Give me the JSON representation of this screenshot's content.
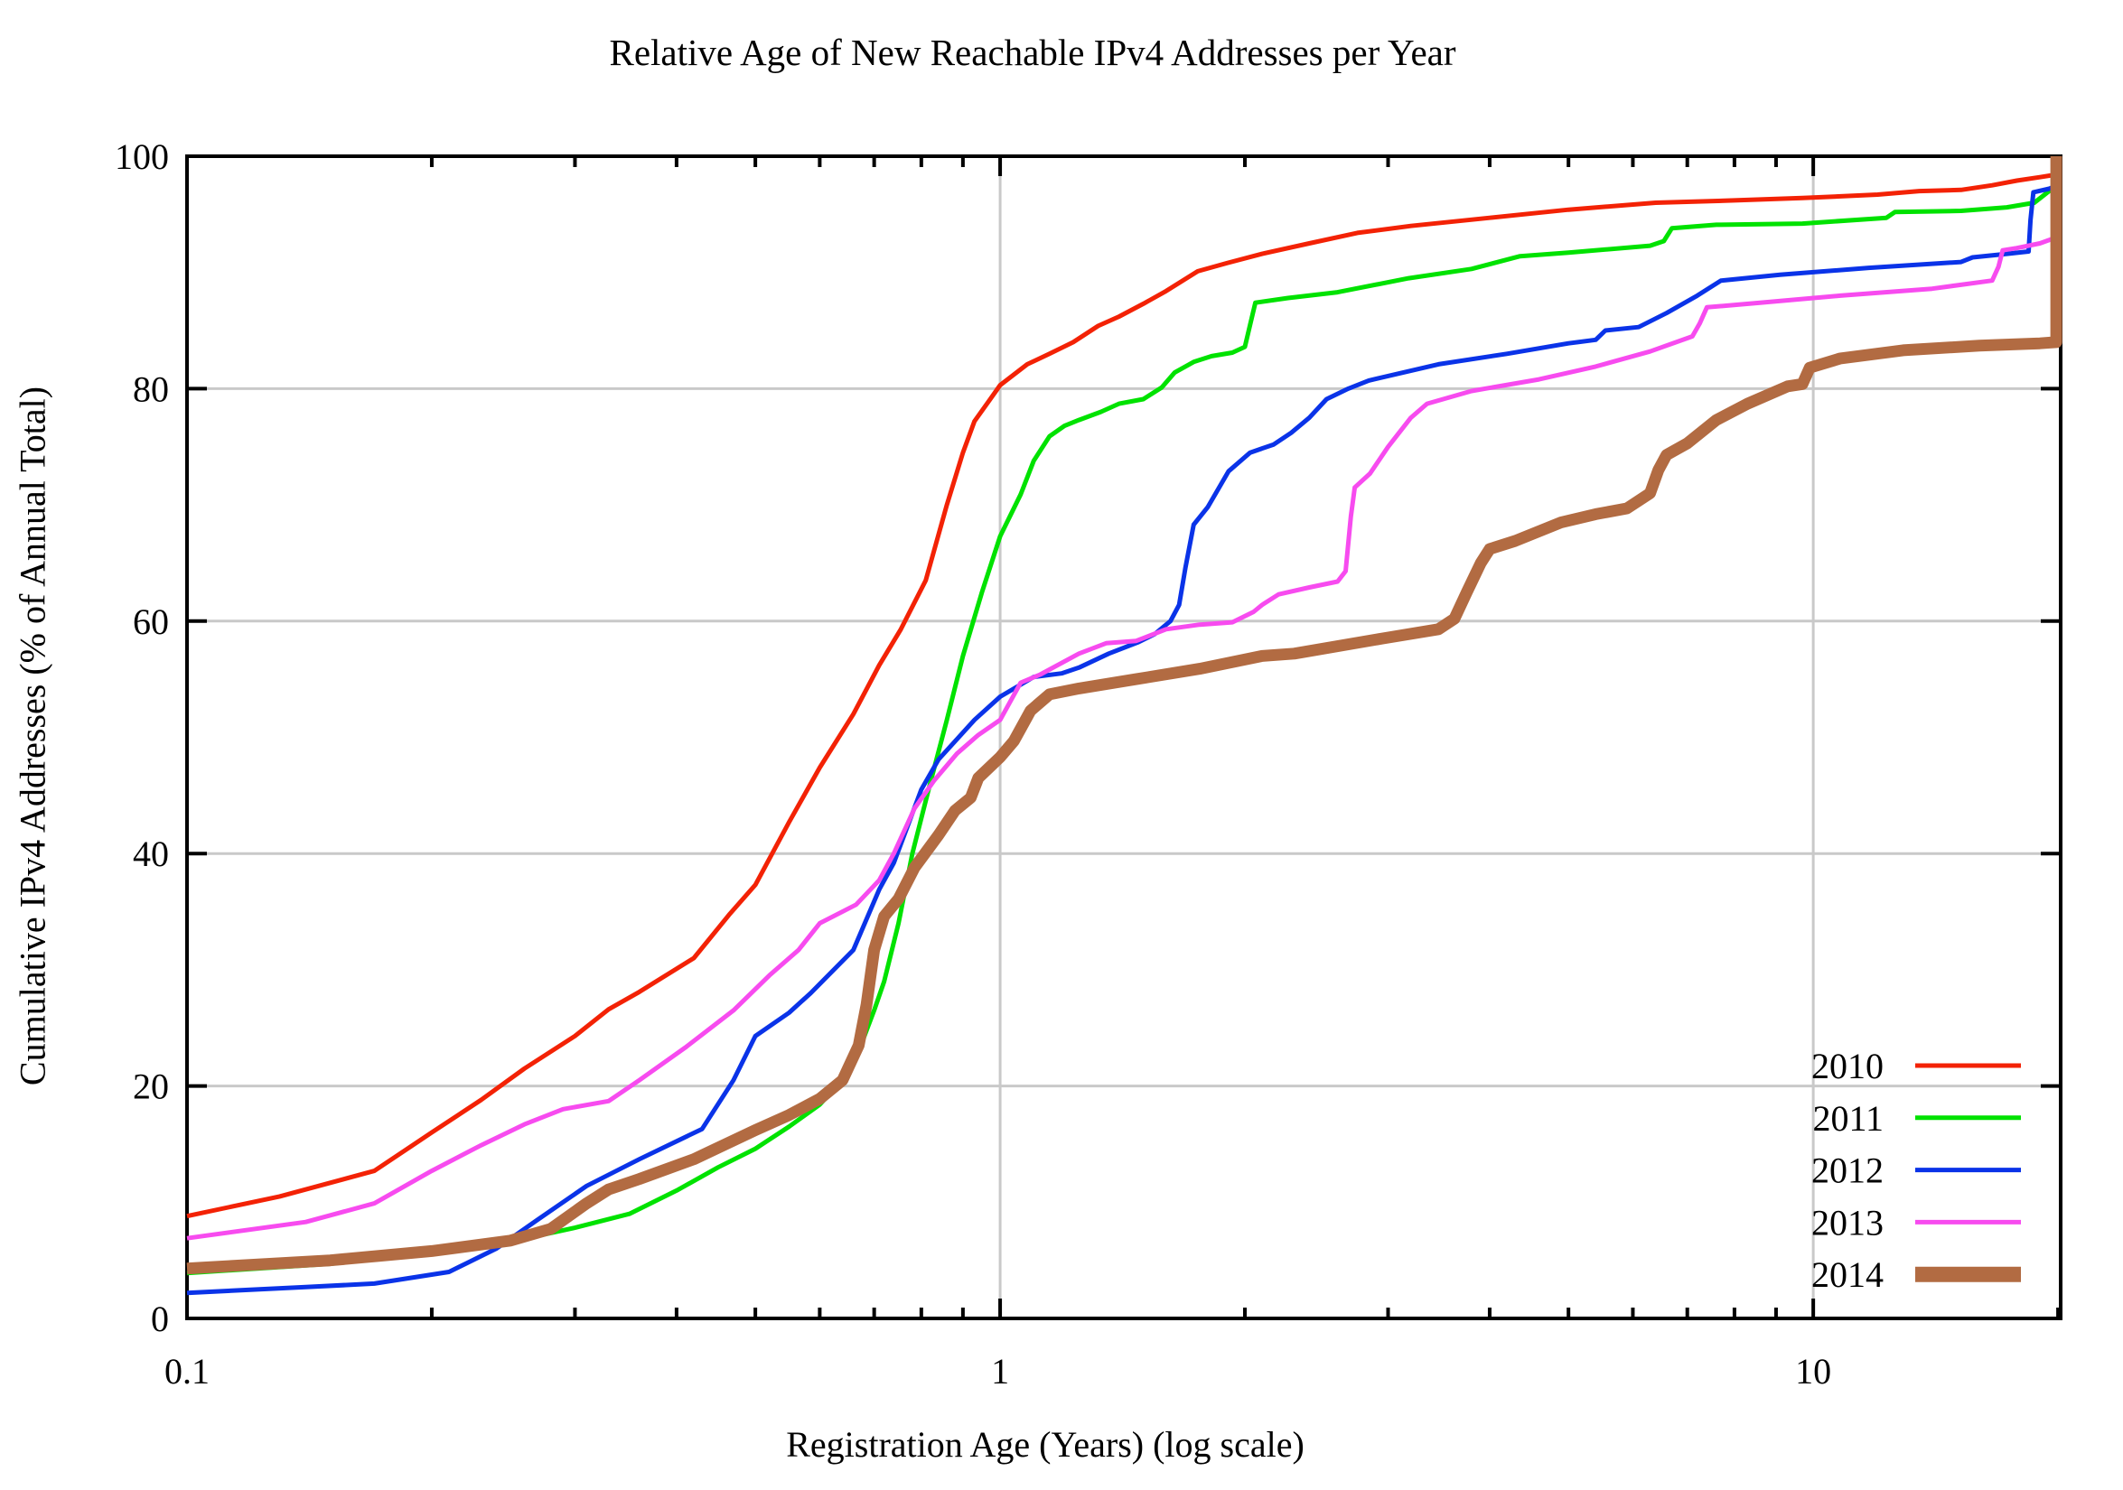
{
  "chart_data": {
    "type": "line",
    "title": "Relative Age of New Reachable IPv4 Addresses per Year",
    "xlabel": "Registration Age (Years) (log scale)",
    "ylabel": "Cumulative IPv4 Addresses (% of Annual Total)",
    "x_scale": "log",
    "x_range": [
      0.1,
      20.15
    ],
    "y_range": [
      0,
      100
    ],
    "x_major_ticks": [
      0.1,
      1,
      10
    ],
    "x_major_tick_labels": [
      "0.1",
      "1",
      "10"
    ],
    "x_minor_ticks": [
      0.2,
      0.3,
      0.4,
      0.5,
      0.6,
      0.7,
      0.8,
      0.9,
      2,
      3,
      4,
      5,
      6,
      7,
      8,
      9,
      20
    ],
    "y_ticks": [
      0,
      20,
      40,
      60,
      80,
      100
    ],
    "y_tick_labels": [
      "0",
      "20",
      "40",
      "60",
      "80",
      "100"
    ],
    "grid": {
      "x_values": [
        1,
        10
      ],
      "y_values": [
        20,
        40,
        60,
        80
      ],
      "color": "#c9c9c9"
    },
    "axis_color": "#000000",
    "background": "#ffffff",
    "legend_position": "bottom-right",
    "series": [
      {
        "name": "2010",
        "color": "#f32205",
        "stroke_width": 5,
        "legend_stroke": 5,
        "points": [
          [
            0.1,
            8.8
          ],
          [
            0.13,
            10.5
          ],
          [
            0.17,
            12.7
          ],
          [
            0.2,
            16
          ],
          [
            0.23,
            18.8
          ],
          [
            0.26,
            21.5
          ],
          [
            0.3,
            24.3
          ],
          [
            0.33,
            26.6
          ],
          [
            0.36,
            28.1
          ],
          [
            0.42,
            31
          ],
          [
            0.465,
            34.8
          ],
          [
            0.5,
            37.3
          ],
          [
            0.55,
            42.7
          ],
          [
            0.6,
            47.4
          ],
          [
            0.66,
            52
          ],
          [
            0.71,
            56.2
          ],
          [
            0.755,
            59.3
          ],
          [
            0.81,
            63.5
          ],
          [
            0.86,
            70
          ],
          [
            0.9,
            74.5
          ],
          [
            0.93,
            77.2
          ],
          [
            0.97,
            79
          ],
          [
            1,
            80.3
          ],
          [
            1.08,
            82.1
          ],
          [
            1.15,
            83
          ],
          [
            1.23,
            84
          ],
          [
            1.32,
            85.4
          ],
          [
            1.4,
            86.2
          ],
          [
            1.5,
            87.3
          ],
          [
            1.6,
            88.4
          ],
          [
            1.75,
            90.1
          ],
          [
            1.9,
            90.8
          ],
          [
            2.1,
            91.6
          ],
          [
            2.4,
            92.5
          ],
          [
            2.75,
            93.4
          ],
          [
            3.2,
            94
          ],
          [
            4,
            94.7
          ],
          [
            5,
            95.4
          ],
          [
            6.4,
            96
          ],
          [
            8,
            96.2
          ],
          [
            9.7,
            96.4
          ],
          [
            12,
            96.7
          ],
          [
            13.5,
            97
          ],
          [
            15.2,
            97.1
          ],
          [
            16.6,
            97.5
          ],
          [
            17.8,
            97.9
          ],
          [
            19,
            98.2
          ],
          [
            19.8,
            98.4
          ],
          [
            20.1,
            98.5
          ]
        ]
      },
      {
        "name": "2011",
        "color": "#00e200",
        "stroke_width": 5,
        "legend_stroke": 5,
        "points": [
          [
            0.1,
            3.9
          ],
          [
            0.15,
            4.7
          ],
          [
            0.2,
            5.6
          ],
          [
            0.25,
            6.6
          ],
          [
            0.3,
            7.8
          ],
          [
            0.35,
            9
          ],
          [
            0.4,
            11
          ],
          [
            0.45,
            13
          ],
          [
            0.5,
            14.6
          ],
          [
            0.55,
            16.5
          ],
          [
            0.6,
            18.4
          ],
          [
            0.64,
            20.5
          ],
          [
            0.67,
            23
          ],
          [
            0.7,
            26.5
          ],
          [
            0.72,
            29
          ],
          [
            0.75,
            34
          ],
          [
            0.78,
            40
          ],
          [
            0.82,
            46
          ],
          [
            0.86,
            51.5
          ],
          [
            0.9,
            57
          ],
          [
            0.95,
            62.5
          ],
          [
            1,
            67.3
          ],
          [
            1.06,
            70.9
          ],
          [
            1.1,
            73.8
          ],
          [
            1.15,
            75.9
          ],
          [
            1.2,
            76.8
          ],
          [
            1.25,
            77.3
          ],
          [
            1.33,
            78
          ],
          [
            1.4,
            78.7
          ],
          [
            1.5,
            79.1
          ],
          [
            1.58,
            80.1
          ],
          [
            1.64,
            81.4
          ],
          [
            1.73,
            82.3
          ],
          [
            1.82,
            82.8
          ],
          [
            1.93,
            83.1
          ],
          [
            2,
            83.6
          ],
          [
            2.03,
            85.5
          ],
          [
            2.06,
            87.4
          ],
          [
            2.26,
            87.8
          ],
          [
            2.6,
            88.3
          ],
          [
            3.18,
            89.5
          ],
          [
            3.8,
            90.3
          ],
          [
            4.36,
            91.4
          ],
          [
            5,
            91.7
          ],
          [
            6.3,
            92.3
          ],
          [
            6.55,
            92.7
          ],
          [
            6.7,
            93.8
          ],
          [
            7.6,
            94.1
          ],
          [
            9.7,
            94.2
          ],
          [
            12.3,
            94.7
          ],
          [
            12.6,
            95.2
          ],
          [
            15.2,
            95.3
          ],
          [
            17.3,
            95.6
          ],
          [
            18.7,
            96
          ],
          [
            19.5,
            97
          ],
          [
            20.1,
            97.4
          ]
        ]
      },
      {
        "name": "2012",
        "color": "#0a33e8",
        "stroke_width": 5,
        "legend_stroke": 5,
        "points": [
          [
            0.1,
            2.2
          ],
          [
            0.14,
            2.7
          ],
          [
            0.17,
            3
          ],
          [
            0.21,
            4
          ],
          [
            0.24,
            6
          ],
          [
            0.27,
            8.5
          ],
          [
            0.31,
            11.4
          ],
          [
            0.36,
            13.7
          ],
          [
            0.43,
            16.3
          ],
          [
            0.47,
            20.5
          ],
          [
            0.5,
            24.3
          ],
          [
            0.55,
            26.3
          ],
          [
            0.585,
            28
          ],
          [
            0.66,
            31.7
          ],
          [
            0.71,
            36.9
          ],
          [
            0.74,
            39.2
          ],
          [
            0.8,
            45.5
          ],
          [
            0.84,
            48.1
          ],
          [
            0.93,
            51.5
          ],
          [
            1,
            53.5
          ],
          [
            1.1,
            55.2
          ],
          [
            1.19,
            55.5
          ],
          [
            1.25,
            56
          ],
          [
            1.36,
            57.2
          ],
          [
            1.48,
            58.2
          ],
          [
            1.55,
            58.9
          ],
          [
            1.62,
            60
          ],
          [
            1.66,
            61.4
          ],
          [
            1.69,
            64.6
          ],
          [
            1.73,
            68.3
          ],
          [
            1.8,
            69.8
          ],
          [
            1.91,
            72.9
          ],
          [
            2.03,
            74.5
          ],
          [
            2.17,
            75.2
          ],
          [
            2.28,
            76.2
          ],
          [
            2.4,
            77.5
          ],
          [
            2.52,
            79.1
          ],
          [
            2.68,
            80
          ],
          [
            2.84,
            80.7
          ],
          [
            3.46,
            82.1
          ],
          [
            4.2,
            83
          ],
          [
            5,
            83.9
          ],
          [
            5.4,
            84.2
          ],
          [
            5.55,
            85
          ],
          [
            6.1,
            85.3
          ],
          [
            6.6,
            86.5
          ],
          [
            7.2,
            88
          ],
          [
            7.7,
            89.3
          ],
          [
            9.1,
            89.8
          ],
          [
            11.7,
            90.4
          ],
          [
            15.2,
            90.9
          ],
          [
            15.7,
            91.3
          ],
          [
            17.3,
            91.6
          ],
          [
            18.4,
            91.8
          ],
          [
            18.5,
            94.5
          ],
          [
            18.65,
            96.9
          ],
          [
            19.5,
            97.2
          ],
          [
            20.1,
            97.6
          ]
        ]
      },
      {
        "name": "2013",
        "color": "#f74bef",
        "stroke_width": 5,
        "legend_stroke": 5,
        "points": [
          [
            0.1,
            6.9
          ],
          [
            0.14,
            8.3
          ],
          [
            0.17,
            9.9
          ],
          [
            0.2,
            12.7
          ],
          [
            0.23,
            14.9
          ],
          [
            0.26,
            16.7
          ],
          [
            0.29,
            18
          ],
          [
            0.33,
            18.7
          ],
          [
            0.36,
            20.5
          ],
          [
            0.41,
            23.3
          ],
          [
            0.47,
            26.5
          ],
          [
            0.52,
            29.5
          ],
          [
            0.565,
            31.7
          ],
          [
            0.6,
            34
          ],
          [
            0.665,
            35.6
          ],
          [
            0.71,
            37.7
          ],
          [
            0.74,
            40
          ],
          [
            0.785,
            43.9
          ],
          [
            0.83,
            46.3
          ],
          [
            0.885,
            48.6
          ],
          [
            0.94,
            50.2
          ],
          [
            1,
            51.5
          ],
          [
            1.06,
            54.7
          ],
          [
            1.12,
            55.4
          ],
          [
            1.25,
            57.2
          ],
          [
            1.35,
            58.1
          ],
          [
            1.47,
            58.3
          ],
          [
            1.6,
            59.3
          ],
          [
            1.76,
            59.7
          ],
          [
            1.93,
            59.9
          ],
          [
            2.05,
            60.8
          ],
          [
            2.1,
            61.4
          ],
          [
            2.2,
            62.3
          ],
          [
            2.4,
            62.9
          ],
          [
            2.6,
            63.4
          ],
          [
            2.66,
            64.3
          ],
          [
            2.7,
            69
          ],
          [
            2.73,
            71.5
          ],
          [
            2.85,
            72.7
          ],
          [
            3,
            75
          ],
          [
            3.2,
            77.5
          ],
          [
            3.35,
            78.7
          ],
          [
            3.8,
            79.8
          ],
          [
            4.6,
            80.8
          ],
          [
            5.4,
            81.9
          ],
          [
            6.3,
            83.2
          ],
          [
            7.1,
            84.5
          ],
          [
            7.25,
            85.6
          ],
          [
            7.4,
            87
          ],
          [
            8.6,
            87.4
          ],
          [
            10.8,
            88
          ],
          [
            14,
            88.6
          ],
          [
            16.6,
            89.3
          ],
          [
            16.9,
            90.5
          ],
          [
            17.1,
            91.9
          ],
          [
            17.8,
            92.1
          ],
          [
            19,
            92.5
          ],
          [
            19.7,
            92.9
          ],
          [
            20.1,
            92.9
          ]
        ]
      },
      {
        "name": "2014",
        "color": "#b26b42",
        "stroke_width": 13,
        "legend_stroke": 17,
        "points": [
          [
            0.1,
            4.3
          ],
          [
            0.15,
            5
          ],
          [
            0.2,
            5.8
          ],
          [
            0.25,
            6.7
          ],
          [
            0.28,
            7.7
          ],
          [
            0.31,
            9.9
          ],
          [
            0.33,
            11.1
          ],
          [
            0.36,
            12
          ],
          [
            0.42,
            13.7
          ],
          [
            0.5,
            16.2
          ],
          [
            0.55,
            17.5
          ],
          [
            0.6,
            18.9
          ],
          [
            0.64,
            20.5
          ],
          [
            0.67,
            23.5
          ],
          [
            0.685,
            27
          ],
          [
            0.7,
            31.7
          ],
          [
            0.72,
            34.6
          ],
          [
            0.75,
            36.1
          ],
          [
            0.785,
            38.8
          ],
          [
            0.84,
            41.6
          ],
          [
            0.88,
            43.7
          ],
          [
            0.92,
            44.8
          ],
          [
            0.94,
            46.5
          ],
          [
            1,
            48.3
          ],
          [
            1.04,
            49.7
          ],
          [
            1.09,
            52.3
          ],
          [
            1.15,
            53.7
          ],
          [
            1.25,
            54.2
          ],
          [
            1.47,
            55
          ],
          [
            1.76,
            55.9
          ],
          [
            2.1,
            57
          ],
          [
            2.3,
            57.2
          ],
          [
            2.95,
            58.5
          ],
          [
            3.46,
            59.3
          ],
          [
            3.62,
            60.2
          ],
          [
            3.75,
            62.5
          ],
          [
            3.9,
            65
          ],
          [
            4,
            66.2
          ],
          [
            4.3,
            66.9
          ],
          [
            4.9,
            68.5
          ],
          [
            5.4,
            69.2
          ],
          [
            5.9,
            69.7
          ],
          [
            6.3,
            71
          ],
          [
            6.45,
            73
          ],
          [
            6.6,
            74.3
          ],
          [
            7,
            75.3
          ],
          [
            7.6,
            77.3
          ],
          [
            8.3,
            78.7
          ],
          [
            9.3,
            80.2
          ],
          [
            9.7,
            80.4
          ],
          [
            9.9,
            81.8
          ],
          [
            10.8,
            82.6
          ],
          [
            12.9,
            83.3
          ],
          [
            16,
            83.7
          ],
          [
            19,
            83.9
          ],
          [
            19.9,
            84
          ],
          [
            19.9,
            100
          ]
        ]
      }
    ]
  }
}
